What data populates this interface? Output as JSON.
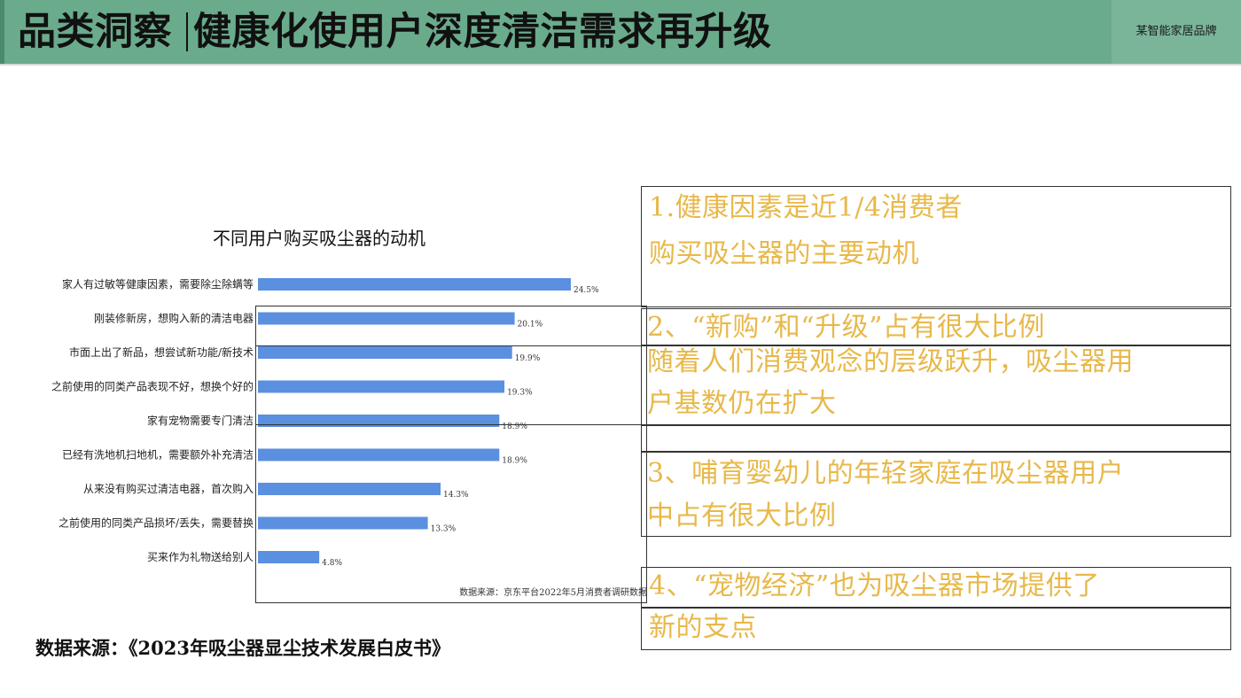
{
  "header": {
    "category": "品类洞察",
    "title": "健康化使用户深度清洁需求再升级",
    "brand": "某智能家居品牌",
    "accent_color": "#6aab8c"
  },
  "chart_data": {
    "type": "bar",
    "orientation": "horizontal",
    "title": "不同用户购买吸尘器的动机",
    "categories": [
      "家人有过敏等健康因素，需要除尘除螨等",
      "刚装修新房，想购入新的清洁电器",
      "市面上出了新品，想尝试新功能/新技术",
      "之前使用的同类产品表现不好，想换个好的",
      "家有宠物需要专门清洁",
      "已经有洗地机扫地机，需要额外补充清洁",
      "从来没有购买过清洁电器，首次购入",
      "之前使用的同类产品损坏/丢失，需要替换",
      "买来作为礼物送给别人"
    ],
    "values": [
      24.5,
      20.1,
      19.9,
      19.3,
      18.9,
      18.9,
      14.3,
      13.3,
      4.8
    ],
    "value_labels": [
      "24.5%",
      "20.1%",
      "19.9%",
      "19.3%",
      "18.9%",
      "18.9%",
      "14.3%",
      "13.3%",
      "4.8%"
    ],
    "bar_color": "#5b8fe0",
    "source_note": "数据来源：京东平台2022年5月消费者调研数据",
    "xlim": [
      0,
      27
    ]
  },
  "source_line": "数据来源：《2023年吸尘器显尘技术发展白皮书》",
  "insights": {
    "line1": "1.健康因素是近1/4消费者",
    "line2": "购买吸尘器的主要动机",
    "line3": "2、“新购”和“升级”占有很大比例",
    "line4": "随着人们消费观念的层级跃升，吸尘器用",
    "line5": "户基数仍在扩大",
    "line6": "3、哺育婴幼儿的年轻家庭在吸尘器用户",
    "line7": "中占有很大比例",
    "line8": "4、“宠物经济”也为吸尘器市场提供了",
    "line9": "新的支点",
    "text_color": "#e8b84a"
  }
}
